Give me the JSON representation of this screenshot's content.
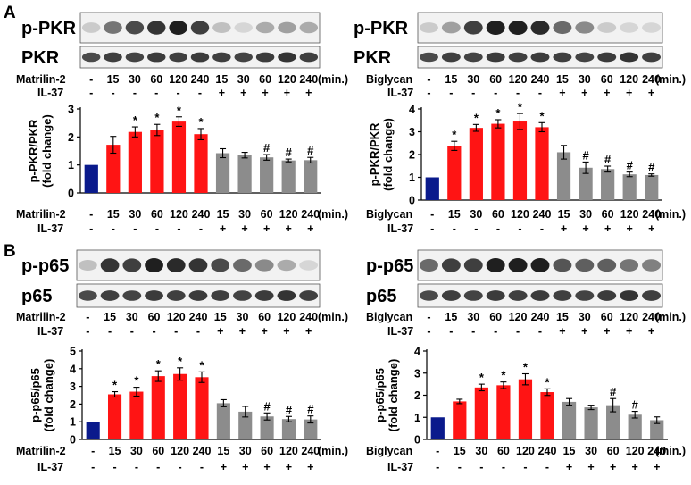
{
  "panel_labels": [
    "A",
    "B"
  ],
  "colors": {
    "control": "#0a1a8c",
    "treated": "#ff1414",
    "il37": "#8c8c8c",
    "blot_bg": "#f2f2f2"
  },
  "chart_data": [
    {
      "type": "bar",
      "panel": "A",
      "position": "left",
      "blots": [
        "p-PKR",
        "PKR"
      ],
      "stimulus_label": "Matrilin-2",
      "inhibitor_label": "IL-37",
      "unit_label": "(min.)",
      "timepoints": [
        "-",
        "15",
        "30",
        "60",
        "120",
        "240",
        "15",
        "30",
        "60",
        "120",
        "240"
      ],
      "il37": [
        "-",
        "-",
        "-",
        "-",
        "-",
        "-",
        "+",
        "+",
        "+",
        "+",
        "+"
      ],
      "ylabel": [
        "p-PKR/PKR",
        "(fold change)"
      ],
      "ylim": [
        0,
        3
      ],
      "yticks": [
        0,
        1,
        2,
        3
      ],
      "values": [
        1.0,
        1.72,
        2.18,
        2.25,
        2.55,
        2.1,
        1.42,
        1.35,
        1.27,
        1.16,
        1.17
      ],
      "errors": [
        0,
        0.3,
        0.18,
        0.2,
        0.17,
        0.2,
        0.16,
        0.1,
        0.1,
        0.05,
        0.1
      ],
      "marks": [
        "",
        "",
        "*",
        "*",
        "*",
        "*",
        "",
        "",
        "#",
        "#",
        "#"
      ]
    },
    {
      "type": "bar",
      "panel": "A",
      "position": "right",
      "blots": [
        "p-PKR",
        "PKR"
      ],
      "stimulus_label": "Biglycan",
      "inhibitor_label": "IL-37",
      "unit_label": "(min.)",
      "timepoints": [
        "-",
        "15",
        "30",
        "60",
        "120",
        "240",
        "15",
        "30",
        "60",
        "120",
        "240"
      ],
      "il37": [
        "-",
        "-",
        "-",
        "-",
        "-",
        "-",
        "+",
        "+",
        "+",
        "+",
        "+"
      ],
      "ylabel": [
        "p-PKR/PKR",
        "(fold change)"
      ],
      "ylim": [
        0,
        4
      ],
      "yticks": [
        0,
        1,
        2,
        3,
        4
      ],
      "values": [
        1.0,
        2.38,
        3.17,
        3.35,
        3.45,
        3.2,
        2.1,
        1.42,
        1.36,
        1.13,
        1.1
      ],
      "errors": [
        0,
        0.2,
        0.15,
        0.18,
        0.35,
        0.2,
        0.3,
        0.25,
        0.13,
        0.1,
        0.05
      ],
      "marks": [
        "",
        "*",
        "*",
        "*",
        "*",
        "*",
        "",
        "#",
        "#",
        "#",
        "#"
      ]
    },
    {
      "type": "bar",
      "panel": "B",
      "position": "left",
      "blots": [
        "p-p65",
        "p65"
      ],
      "stimulus_label": "Matrilin-2",
      "inhibitor_label": "IL-37",
      "unit_label": "(min.)",
      "timepoints": [
        "-",
        "15",
        "30",
        "60",
        "120",
        "240",
        "15",
        "30",
        "60",
        "120",
        "240"
      ],
      "il37": [
        "-",
        "-",
        "-",
        "-",
        "-",
        "-",
        "+",
        "+",
        "+",
        "+",
        "+"
      ],
      "ylabel": [
        "p-p65/p65",
        "(fold change)"
      ],
      "ylim": [
        0,
        5
      ],
      "yticks": [
        0,
        1,
        2,
        3,
        4,
        5
      ],
      "values": [
        1.0,
        2.55,
        2.7,
        3.58,
        3.7,
        3.52,
        2.05,
        1.57,
        1.3,
        1.15,
        1.13
      ],
      "errors": [
        0,
        0.15,
        0.25,
        0.3,
        0.35,
        0.3,
        0.2,
        0.3,
        0.2,
        0.15,
        0.2
      ],
      "marks": [
        "",
        "*",
        "*",
        "*",
        "*",
        "*",
        "",
        "",
        "#",
        "#",
        "#"
      ]
    },
    {
      "type": "bar",
      "panel": "B",
      "position": "right",
      "blots": [
        "p-p65",
        "p65"
      ],
      "stimulus_label": "Biglycan",
      "inhibitor_label": "IL-37",
      "unit_label": "(min.)",
      "timepoints": [
        "-",
        "15",
        "30",
        "60",
        "120",
        "240",
        "15",
        "30",
        "60",
        "120",
        "240"
      ],
      "il37": [
        "-",
        "-",
        "-",
        "-",
        "-",
        "-",
        "+",
        "+",
        "+",
        "+",
        "+"
      ],
      "ylabel": [
        "p-p65/p65",
        "(fold change)"
      ],
      "ylim": [
        0,
        4
      ],
      "yticks": [
        0,
        1,
        2,
        3,
        4
      ],
      "values": [
        1.0,
        1.72,
        2.35,
        2.45,
        2.72,
        2.14,
        1.7,
        1.45,
        1.55,
        1.12,
        0.87
      ],
      "errors": [
        0,
        0.1,
        0.15,
        0.15,
        0.25,
        0.15,
        0.15,
        0.1,
        0.3,
        0.15,
        0.15
      ],
      "marks": [
        "",
        "",
        "*",
        "*",
        "*",
        "*",
        "",
        "",
        "#",
        "#",
        ""
      ]
    }
  ]
}
